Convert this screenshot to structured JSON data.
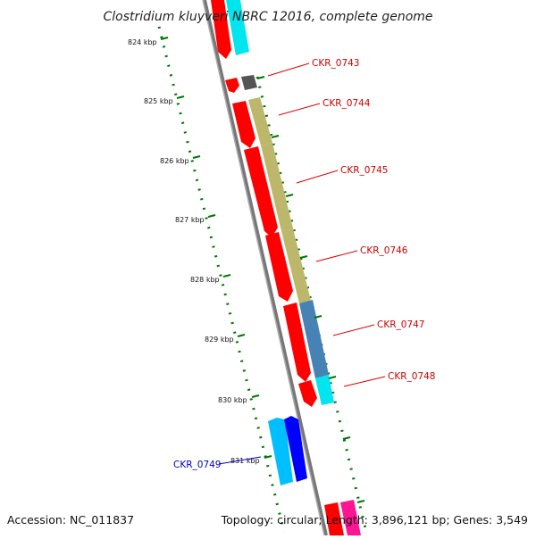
{
  "title": "Clostridium kluyveri NBRC 12016, complete genome",
  "footer": {
    "accession": "Accession: NC_011837",
    "topology": "Topology: circular; Length: 3,896,121 bp; Genes: 3,549"
  },
  "scale": {
    "unit": "kbp",
    "ticks": [
      "824 kbp",
      "825 kbp",
      "826 kbp",
      "827 kbp",
      "828 kbp",
      "829 kbp",
      "830 kbp",
      "831 kbp"
    ]
  },
  "genes": [
    {
      "id": "CKR_0743",
      "color": "#cc0000"
    },
    {
      "id": "CKR_0744",
      "color": "#cc0000"
    },
    {
      "id": "CKR_0745",
      "color": "#cc0000"
    },
    {
      "id": "CKR_0746",
      "color": "#cc0000"
    },
    {
      "id": "CKR_0747",
      "color": "#cc0000"
    },
    {
      "id": "CKR_0748",
      "color": "#cc0000"
    },
    {
      "id": "CKR_0749",
      "color": "#0000bb"
    }
  ],
  "colors": {
    "backbone": "#888888",
    "cds_red": "#ff0000",
    "cyan": "#00e5ee",
    "olive": "#bdb76b",
    "steelblue": "#4682b4",
    "darkgray": "#555555",
    "blue": "#0000ff",
    "light_blue": "#00bfff",
    "pink": "#ff1493",
    "tick_green": "#007700"
  }
}
